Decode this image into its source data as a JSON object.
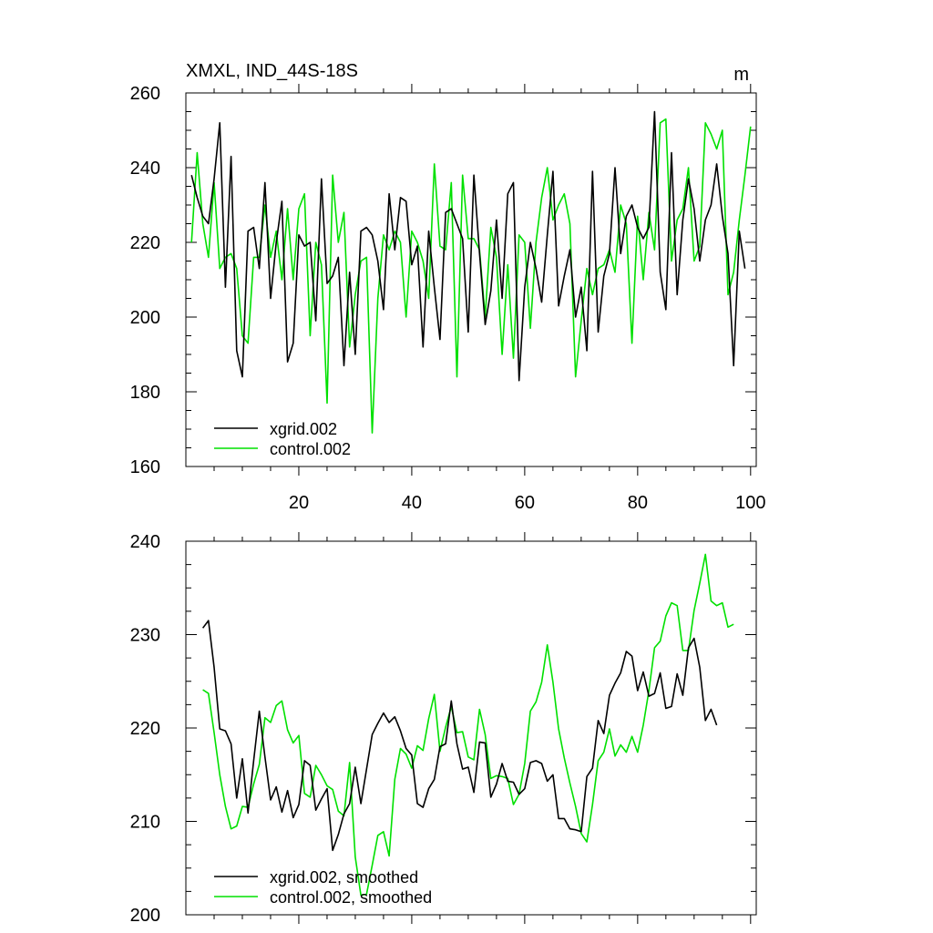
{
  "figure": {
    "title": "XMXL, IND_44S-18S",
    "units": "m",
    "colors": {
      "xgrid": "#000000",
      "control": "#00e000",
      "axis": "#000000"
    }
  },
  "chart_data": [
    {
      "type": "line",
      "title": "XMXL, IND_44S-18S",
      "units": "m",
      "xlim": [
        0,
        101
      ],
      "ylim": [
        160,
        260
      ],
      "grid": false,
      "legend_position": "bottom-left",
      "x_tick_labels": [
        "20",
        "40",
        "60",
        "80",
        "100"
      ],
      "y_tick_labels": [
        "160",
        "180",
        "200",
        "220",
        "240",
        "260"
      ],
      "x_start": 1,
      "series": [
        {
          "name": "xgrid.002",
          "color": "#000000",
          "values": [
            238,
            232,
            227,
            225,
            237,
            252,
            208,
            243,
            191,
            184,
            223,
            224,
            213,
            236,
            205,
            220,
            231,
            188,
            193,
            222,
            219,
            220,
            199,
            237,
            209,
            211,
            216,
            187,
            212,
            190,
            223,
            224,
            222,
            215,
            202,
            233,
            218,
            232,
            231,
            214,
            219,
            192,
            223,
            208,
            194,
            228,
            229,
            225,
            221,
            196,
            238,
            217,
            198,
            207,
            226,
            205,
            233,
            236,
            183,
            208,
            220,
            213,
            204,
            222,
            239,
            203,
            211,
            218,
            200,
            208,
            191,
            239,
            196,
            211,
            217,
            240,
            217,
            227,
            230,
            224,
            221,
            224,
            255,
            212,
            202,
            244,
            206,
            226,
            237,
            229,
            215,
            226,
            230,
            241,
            227,
            217,
            187,
            223,
            213
          ]
        },
        {
          "name": "control.002",
          "color": "#00e000",
          "values": [
            220,
            244,
            225,
            216,
            236,
            213,
            216,
            217,
            213,
            195,
            193,
            216,
            216,
            230,
            216,
            223,
            210,
            229,
            210,
            229,
            233,
            195,
            220,
            214,
            177,
            238,
            220,
            228,
            192,
            206,
            215,
            216,
            169,
            205,
            222,
            218,
            223,
            220,
            200,
            223,
            220,
            215,
            205,
            241,
            219,
            218,
            236,
            184,
            238,
            221,
            221,
            218,
            200,
            224,
            216,
            190,
            214,
            189,
            222,
            220,
            197,
            220,
            232,
            240,
            226,
            230,
            233,
            225,
            184,
            199,
            213,
            206,
            213,
            214,
            218,
            212,
            230,
            225,
            193,
            227,
            210,
            228,
            218,
            252,
            253,
            215,
            226,
            229,
            240,
            215,
            219,
            252,
            249,
            245,
            250,
            206,
            212,
            226,
            238,
            251
          ]
        }
      ]
    },
    {
      "type": "line",
      "xlim": [
        0,
        101
      ],
      "ylim": [
        200,
        240
      ],
      "grid": false,
      "legend_position": "bottom-left",
      "y_tick_labels": [
        "200",
        "210",
        "220",
        "230",
        "240"
      ],
      "x_start": 3,
      "series": [
        {
          "name": "xgrid.002, smoothed",
          "color": "#000000",
          "values": [
            230.7,
            231.5,
            226.5,
            219.9,
            219.7,
            218.3,
            212.5,
            216.7,
            210.9,
            216.5,
            221.8,
            216.9,
            212.3,
            213.7,
            211.0,
            213.3,
            210.4,
            211.8,
            216.5,
            216.0,
            211.2,
            212.4,
            213.5,
            206.9,
            208.6,
            210.8,
            211.9,
            215.8,
            211.9,
            215.6,
            219.3,
            220.5,
            221.6,
            220.6,
            221.2,
            219.7,
            217.8,
            217.1,
            211.9,
            211.5,
            213.5,
            214.5,
            218.0,
            218.3,
            222.9,
            218.3,
            215.6,
            215.8,
            213.1,
            218.5,
            218.4,
            212.6,
            214.0,
            216.2,
            214.3,
            214.2,
            212.9,
            213.5,
            216.3,
            216.5,
            216.2,
            214.3,
            215.0,
            210.3,
            210.3,
            209.2,
            209.1,
            208.9,
            214.8,
            215.7,
            220.8,
            219.4,
            223.5,
            224.8,
            225.9,
            228.2,
            227.7,
            224.0,
            226.0,
            223.4,
            223.7,
            225.9,
            222.1,
            222.3,
            225.8,
            223.5,
            228.6,
            229.6,
            226.5,
            220.8,
            222.0,
            220.3
          ]
        },
        {
          "name": "control.002, smoothed",
          "color": "#00e000",
          "values": [
            224.1,
            223.7,
            219.5,
            215.0,
            211.6,
            209.2,
            209.5,
            211.6,
            211.5,
            214.0,
            216.1,
            221.1,
            220.6,
            222.4,
            222.9,
            219.8,
            218.4,
            219.2,
            213.0,
            212.6,
            216.0,
            215.0,
            213.8,
            213.4,
            211.1,
            210.6,
            216.3,
            206.2,
            202.1,
            202.2,
            205.3,
            208.5,
            208.9,
            206.3,
            214.5,
            217.8,
            217.2,
            215.7,
            218.1,
            217.6,
            221.0,
            223.6,
            217.5,
            220.1,
            222.3,
            219.5,
            219.6,
            216.9,
            216.6,
            222.0,
            219.3,
            214.6,
            214.9,
            214.8,
            214.6,
            211.8,
            212.9,
            216.2,
            221.8,
            222.8,
            224.9,
            228.9,
            224.9,
            219.9,
            216.8,
            214.1,
            211.6,
            208.7,
            207.8,
            211.8,
            216.5,
            217.4,
            219.9,
            217.0,
            218.2,
            217.4,
            219.1,
            217.4,
            220.3,
            224.0,
            228.6,
            229.3,
            232.0,
            233.4,
            233.1,
            228.3,
            228.3,
            232.6,
            235.5,
            238.6,
            233.6,
            233.1,
            233.4,
            230.8,
            231.1
          ]
        }
      ]
    }
  ]
}
